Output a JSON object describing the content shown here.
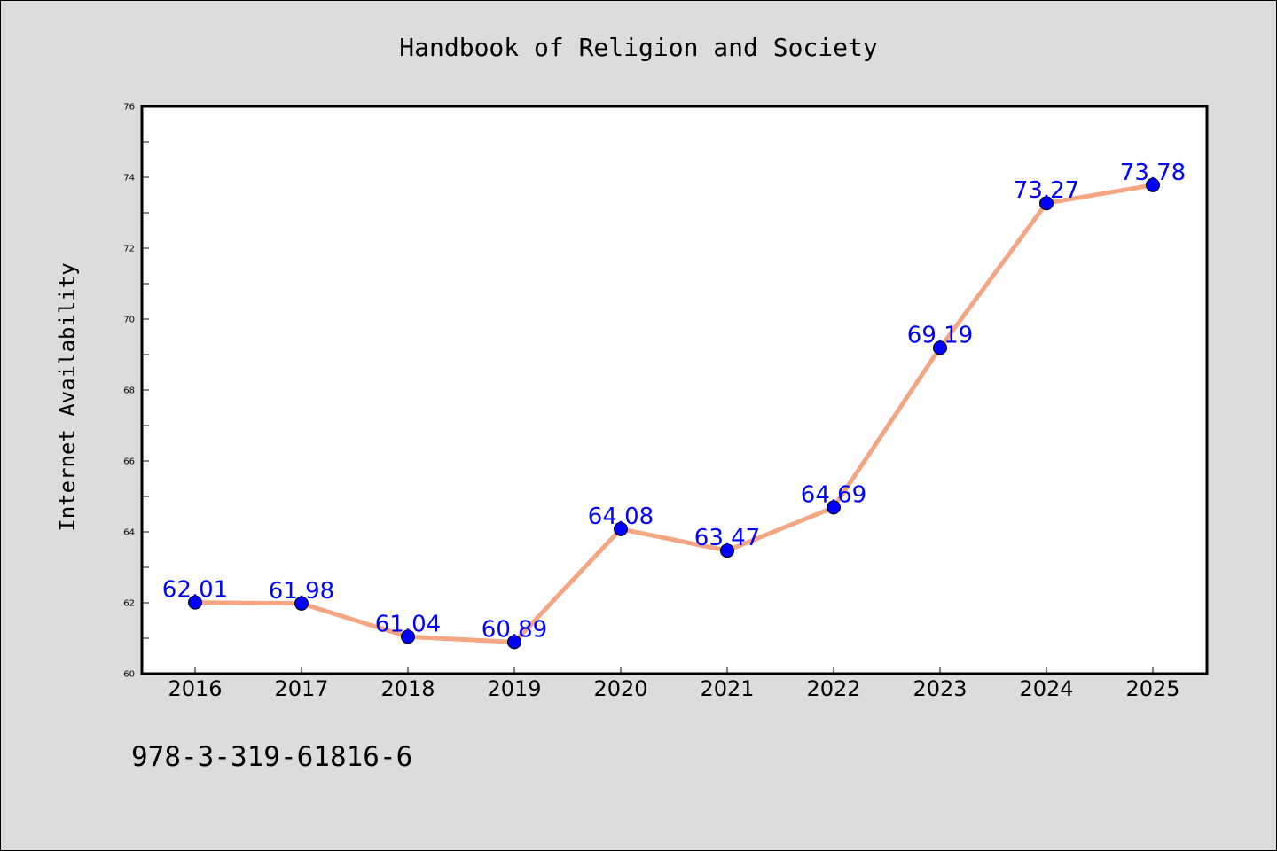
{
  "chart_data": {
    "type": "line",
    "title": "Handbook of Religion and Society",
    "xlabel": "",
    "ylabel": "Internet Availability",
    "categories": [
      "2016",
      "2017",
      "2018",
      "2019",
      "2020",
      "2021",
      "2022",
      "2023",
      "2024",
      "2025"
    ],
    "series": [
      {
        "values": [
          62.01,
          61.98,
          61.04,
          60.89,
          64.08,
          63.47,
          64.69,
          69.19,
          73.27,
          73.78
        ],
        "labels": [
          "62.01",
          "61.98",
          "61.04",
          "60.89",
          "64.08",
          "63.47",
          "64.69",
          "69.19",
          "73.27",
          "73.78"
        ],
        "line_color": "#f4a582",
        "marker_color": "#0000ff"
      }
    ],
    "ylim": [
      60,
      76
    ],
    "yticks": [
      "60",
      "62",
      "64",
      "66",
      "68",
      "70",
      "72",
      "74",
      "76"
    ],
    "grid": false,
    "plot_background": "#ffffff",
    "figure_background": "#dcdcdc"
  },
  "footer": {
    "isbn": "978-3-319-61816-6"
  }
}
